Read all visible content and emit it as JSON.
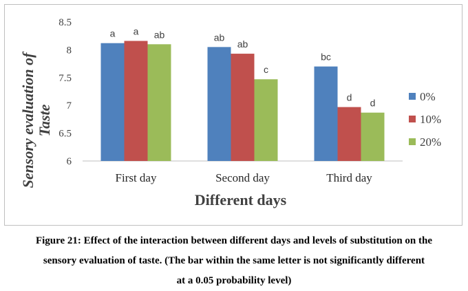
{
  "chart_data": {
    "type": "bar",
    "categories": [
      "First day",
      "Second day",
      "Third day"
    ],
    "series": [
      {
        "name": "0%",
        "color": "#4f81bd",
        "values": [
          8.12,
          8.05,
          7.7
        ],
        "labels": [
          "a",
          "ab",
          "bc"
        ]
      },
      {
        "name": "10%",
        "color": "#c0504d",
        "values": [
          8.16,
          7.93,
          6.97
        ],
        "labels": [
          "a",
          "ab",
          "d"
        ]
      },
      {
        "name": "20%",
        "color": "#9bbb59",
        "values": [
          8.1,
          7.47,
          6.87
        ],
        "labels": [
          "ab",
          "c",
          "d"
        ]
      }
    ],
    "xlabel": "Different days",
    "ylabel": [
      "Sensory evaluation of",
      "Taste"
    ],
    "ylim": [
      6,
      8.5
    ],
    "yticks": [
      "6",
      "6.5",
      "7",
      "7.5",
      "8",
      "8.5"
    ],
    "grid": false,
    "legend_position": "right"
  },
  "caption": {
    "line1": "Figure 21: Effect of the interaction between different days and levels of substitution on the",
    "line2": "sensory evaluation of taste. (The bar within the same letter is not significantly different",
    "line3": "at a 0.05 probability level)"
  }
}
